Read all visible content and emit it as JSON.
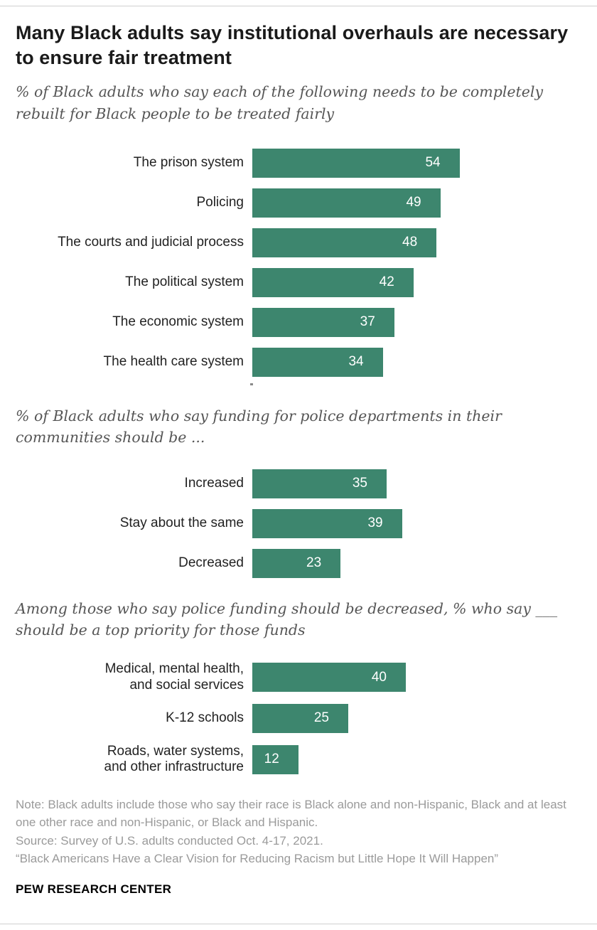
{
  "colors": {
    "bar": "#3d866e",
    "value_text": "#ffffff",
    "rule": "#cfcfcf"
  },
  "header": {
    "title": "Many Black adults say institutional overhauls are necessary to ensure fair treatment"
  },
  "chart_data": [
    {
      "type": "bar",
      "orientation": "horizontal",
      "subtitle": "% of Black adults who say each of the following needs to be completely rebuilt for Black people to be treated fairly",
      "categories": [
        "The prison system",
        "Policing",
        "The courts and judicial process",
        "The political system",
        "The economic system",
        "The health care system"
      ],
      "values": [
        54,
        49,
        48,
        42,
        37,
        34
      ],
      "xlim": [
        0,
        60
      ],
      "grid": false,
      "value_labels": "inside-right"
    },
    {
      "type": "bar",
      "orientation": "horizontal",
      "subtitle": "% of Black adults who say funding for police departments in their communities should be ...",
      "categories": [
        "Increased",
        "Stay about the same",
        "Decreased"
      ],
      "values": [
        35,
        39,
        23
      ],
      "xlim": [
        0,
        60
      ],
      "grid": false,
      "value_labels": "inside-right"
    },
    {
      "type": "bar",
      "orientation": "horizontal",
      "subtitle": "Among those who say police funding should be decreased, % who say ___ should be a top priority for those funds",
      "categories": [
        "Medical, mental health,\nand social services",
        "K-12 schools",
        "Roads, water systems,\nand other infrastructure"
      ],
      "values": [
        40,
        25,
        12
      ],
      "xlim": [
        0,
        60
      ],
      "grid": false,
      "value_labels": "inside-right"
    }
  ],
  "footer": {
    "note": "Note: Black adults include those who say their race is Black alone and non-Hispanic, Black and at least one other race and non-Hispanic, or Black and Hispanic.",
    "source": "Source: Survey of U.S. adults conducted Oct. 4-17, 2021.",
    "report": "“Black Americans Have a Clear Vision for Reducing Racism but Little Hope It Will Happen”",
    "brand": "PEW RESEARCH CENTER"
  }
}
